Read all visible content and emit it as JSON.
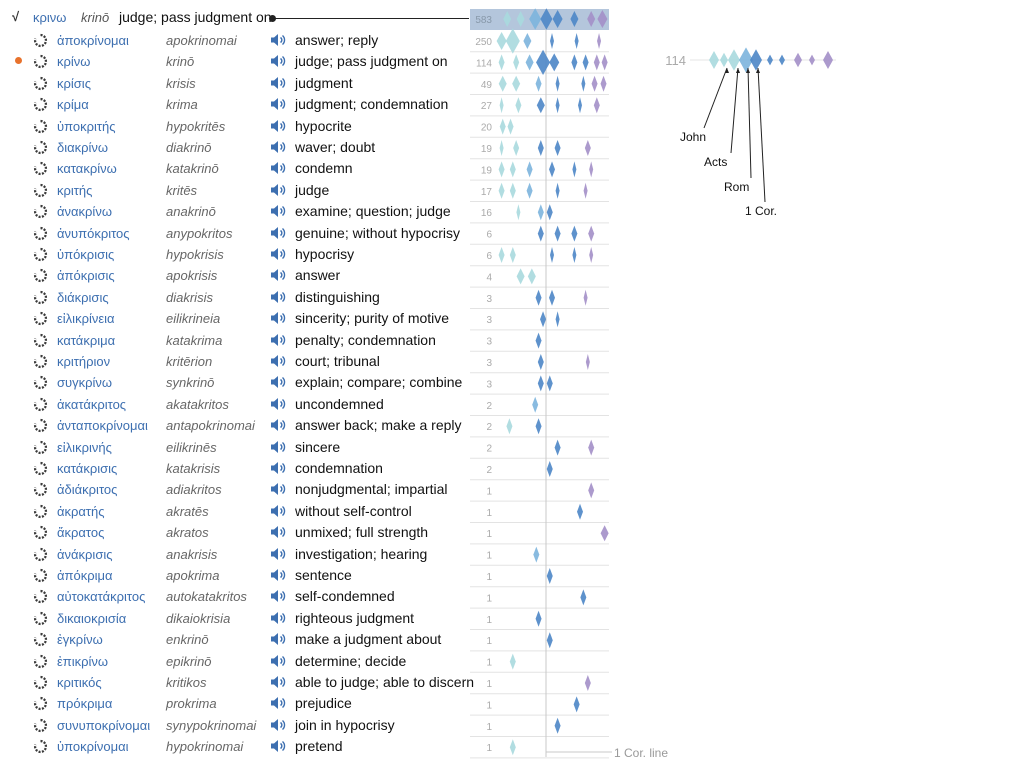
{
  "root": {
    "symbol": "√",
    "greek": "κρινω",
    "translit": "krinō",
    "gloss": "judge; pass judgment on",
    "total": 583
  },
  "colors": {
    "john": "#a9d9de",
    "acts": "#7cb4dd",
    "paul": "#4d86c6",
    "late": "#a38fc8",
    "marker": "#e8722c",
    "link": "#3d6fb0"
  },
  "words": [
    {
      "greek": "ἀποκρίνομαι",
      "translit": "apokrinomai",
      "gloss": "answer; reply",
      "count": 250
    },
    {
      "greek": "κρίνω",
      "translit": "krinō",
      "gloss": "judge; pass judgment on",
      "count": 114,
      "selected": true
    },
    {
      "greek": "κρίσις",
      "translit": "krisis",
      "gloss": "judgment",
      "count": 49
    },
    {
      "greek": "κρίμα",
      "translit": "krima",
      "gloss": "judgment; condemnation",
      "count": 27
    },
    {
      "greek": "ὑποκριτής",
      "translit": "hypokritēs",
      "gloss": "hypocrite",
      "count": 20
    },
    {
      "greek": "διακρίνω",
      "translit": "diakrinō",
      "gloss": "waver; doubt",
      "count": 19
    },
    {
      "greek": "κατακρίνω",
      "translit": "katakrinō",
      "gloss": "condemn",
      "count": 19
    },
    {
      "greek": "κριτής",
      "translit": "kritēs",
      "gloss": "judge",
      "count": 17
    },
    {
      "greek": "ἀνακρίνω",
      "translit": "anakrinō",
      "gloss": "examine; question; judge",
      "count": 16
    },
    {
      "greek": "ἀνυπόκριτος",
      "translit": "anypokritos",
      "gloss": "genuine; without hypocrisy",
      "count": 6
    },
    {
      "greek": "ὑπόκρισις",
      "translit": "hypokrisis",
      "gloss": "hypocrisy",
      "count": 6
    },
    {
      "greek": "ἀπόκρισις",
      "translit": "apokrisis",
      "gloss": "answer",
      "count": 4
    },
    {
      "greek": "διάκρισις",
      "translit": "diakrisis",
      "gloss": "distinguishing",
      "count": 3
    },
    {
      "greek": "εἰλικρίνεια",
      "translit": "eilikrineia",
      "gloss": "sincerity; purity of motive",
      "count": 3
    },
    {
      "greek": "κατάκριμα",
      "translit": "katakrima",
      "gloss": "penalty; condemnation",
      "count": 3
    },
    {
      "greek": "κριτήριον",
      "translit": "kritērion",
      "gloss": "court; tribunal",
      "count": 3
    },
    {
      "greek": "συγκρίνω",
      "translit": "synkrinō",
      "gloss": "explain; compare; combine",
      "count": 3
    },
    {
      "greek": "ἀκατάκριτος",
      "translit": "akatakritos",
      "gloss": "uncondemned",
      "count": 2
    },
    {
      "greek": "ἀνταποκρίνομαι",
      "translit": "antapokrinomai",
      "gloss": "answer back; make a reply",
      "count": 2
    },
    {
      "greek": "εἰλικρινής",
      "translit": "eilikrinēs",
      "gloss": "sincere",
      "count": 2
    },
    {
      "greek": "κατάκρισις",
      "translit": "katakrisis",
      "gloss": "condemnation",
      "count": 2
    },
    {
      "greek": "ἀδιάκριτος",
      "translit": "adiakritos",
      "gloss": "nonjudgmental; impartial",
      "count": 1
    },
    {
      "greek": "ἀκρατής",
      "translit": "akratēs",
      "gloss": "without self-control",
      "count": 1
    },
    {
      "greek": "ἄκρατος",
      "translit": "akratos",
      "gloss": "unmixed; full strength",
      "count": 1
    },
    {
      "greek": "ἀνάκρισις",
      "translit": "anakrisis",
      "gloss": "investigation; hearing",
      "count": 1
    },
    {
      "greek": "ἀπόκριμα",
      "translit": "apokrima",
      "gloss": "sentence",
      "count": 1
    },
    {
      "greek": "αὐτοκατάκριτος",
      "translit": "autokatakritos",
      "gloss": "self-condemned",
      "count": 1
    },
    {
      "greek": "δικαιοκρισία",
      "translit": "dikaiokrisia",
      "gloss": "righteous judgment",
      "count": 1
    },
    {
      "greek": "ἐγκρίνω",
      "translit": "enkrinō",
      "gloss": "make a judgment about",
      "count": 1
    },
    {
      "greek": "ἐπικρίνω",
      "translit": "epikrinō",
      "gloss": "determine; decide",
      "count": 1
    },
    {
      "greek": "κριτικός",
      "translit": "kritikos",
      "gloss": "able to judge; able to discern",
      "count": 1
    },
    {
      "greek": "πρόκριμα",
      "translit": "prokrima",
      "gloss": "prejudice",
      "count": 1
    },
    {
      "greek": "συνυποκρίνομαι",
      "translit": "synypokrinomai",
      "gloss": "join in hypocrisy",
      "count": 1
    },
    {
      "greek": "ὑποκρίνομαι",
      "translit": "hypokrinomai",
      "gloss": "pretend",
      "count": 1
    }
  ],
  "legend": {
    "count": 114,
    "labels": [
      "John",
      "Acts",
      "Rom",
      "1 Cor."
    ],
    "ref_line_label": "1 Cor. line"
  },
  "chart_data": {
    "type": "distribution-strips",
    "axis": "New Testament book order",
    "reference_line": "1 Cor.",
    "rows": [
      {
        "word": "κρινω",
        "count": 583,
        "marks": [
          [
            0.1,
            4,
            "john"
          ],
          [
            0.22,
            4,
            "john"
          ],
          [
            0.35,
            6,
            "acts"
          ],
          [
            0.45,
            6,
            "paul"
          ],
          [
            0.55,
            5,
            "paul"
          ],
          [
            0.7,
            4,
            "paul"
          ],
          [
            0.85,
            4,
            "late"
          ],
          [
            0.95,
            5,
            "late"
          ]
        ]
      },
      {
        "word": "ἀποκρίνομαι",
        "count": 250,
        "marks": [
          [
            0.05,
            5,
            "john"
          ],
          [
            0.15,
            7,
            "john"
          ],
          [
            0.28,
            4,
            "acts"
          ],
          [
            0.5,
            2,
            "paul"
          ],
          [
            0.72,
            2,
            "paul"
          ],
          [
            0.92,
            2,
            "late"
          ]
        ]
      },
      {
        "word": "κρίνω",
        "count": 114,
        "marks": [
          [
            0.05,
            3,
            "john"
          ],
          [
            0.18,
            3,
            "john"
          ],
          [
            0.3,
            4,
            "acts"
          ],
          [
            0.42,
            7,
            "paul"
          ],
          [
            0.52,
            5,
            "paul"
          ],
          [
            0.7,
            3,
            "paul"
          ],
          [
            0.8,
            3,
            "paul"
          ],
          [
            0.9,
            3,
            "late"
          ],
          [
            0.97,
            3,
            "late"
          ]
        ]
      },
      {
        "word": "κρίσις",
        "count": 49,
        "marks": [
          [
            0.06,
            4,
            "john"
          ],
          [
            0.18,
            4,
            "john"
          ],
          [
            0.38,
            3,
            "acts"
          ],
          [
            0.55,
            2,
            "paul"
          ],
          [
            0.78,
            2,
            "paul"
          ],
          [
            0.88,
            3,
            "late"
          ],
          [
            0.96,
            3,
            "late"
          ]
        ]
      },
      {
        "word": "κρίμα",
        "count": 27,
        "marks": [
          [
            0.05,
            2,
            "john"
          ],
          [
            0.2,
            3,
            "john"
          ],
          [
            0.4,
            4,
            "paul"
          ],
          [
            0.55,
            2,
            "paul"
          ],
          [
            0.75,
            2,
            "paul"
          ],
          [
            0.9,
            3,
            "late"
          ]
        ]
      },
      {
        "word": "ὑποκριτής",
        "count": 20,
        "marks": [
          [
            0.06,
            3,
            "john"
          ],
          [
            0.13,
            3,
            "john"
          ]
        ]
      },
      {
        "word": "διακρίνω",
        "count": 19,
        "marks": [
          [
            0.05,
            2,
            "john"
          ],
          [
            0.18,
            3,
            "john"
          ],
          [
            0.4,
            3,
            "paul"
          ],
          [
            0.55,
            3,
            "paul"
          ],
          [
            0.82,
            3,
            "late"
          ]
        ]
      },
      {
        "word": "κατακρίνω",
        "count": 19,
        "marks": [
          [
            0.05,
            3,
            "john"
          ],
          [
            0.15,
            3,
            "john"
          ],
          [
            0.3,
            3,
            "acts"
          ],
          [
            0.5,
            3,
            "paul"
          ],
          [
            0.7,
            2,
            "paul"
          ],
          [
            0.85,
            2,
            "late"
          ]
        ]
      },
      {
        "word": "κριτής",
        "count": 17,
        "marks": [
          [
            0.05,
            3,
            "john"
          ],
          [
            0.15,
            3,
            "john"
          ],
          [
            0.3,
            3,
            "acts"
          ],
          [
            0.55,
            2,
            "paul"
          ],
          [
            0.8,
            2,
            "late"
          ]
        ]
      },
      {
        "word": "ἀνακρίνω",
        "count": 16,
        "marks": [
          [
            0.2,
            2,
            "john"
          ],
          [
            0.4,
            3,
            "acts"
          ],
          [
            0.48,
            3,
            "paul"
          ]
        ]
      },
      {
        "word": "ἀνυπόκριτος",
        "count": 6,
        "marks": [
          [
            0.4,
            3,
            "paul"
          ],
          [
            0.55,
            3,
            "paul"
          ],
          [
            0.7,
            3,
            "paul"
          ],
          [
            0.85,
            3,
            "late"
          ]
        ]
      },
      {
        "word": "ὑπόκρισις",
        "count": 6,
        "marks": [
          [
            0.05,
            3,
            "john"
          ],
          [
            0.15,
            3,
            "john"
          ],
          [
            0.5,
            2,
            "paul"
          ],
          [
            0.7,
            2,
            "paul"
          ],
          [
            0.85,
            2,
            "late"
          ]
        ]
      },
      {
        "word": "ἀπόκρισις",
        "count": 4,
        "marks": [
          [
            0.22,
            4,
            "john"
          ],
          [
            0.32,
            4,
            "john"
          ]
        ]
      },
      {
        "word": "διάκρισις",
        "count": 3,
        "marks": [
          [
            0.38,
            3,
            "paul"
          ],
          [
            0.5,
            3,
            "paul"
          ],
          [
            0.8,
            2,
            "late"
          ]
        ]
      },
      {
        "word": "εἰλικρίνεια",
        "count": 3,
        "marks": [
          [
            0.42,
            3,
            "paul"
          ],
          [
            0.55,
            2,
            "paul"
          ]
        ]
      },
      {
        "word": "κατάκριμα",
        "count": 3,
        "marks": [
          [
            0.38,
            3,
            "paul"
          ]
        ]
      },
      {
        "word": "κριτήριον",
        "count": 3,
        "marks": [
          [
            0.4,
            3,
            "paul"
          ],
          [
            0.82,
            2,
            "late"
          ]
        ]
      },
      {
        "word": "συγκρίνω",
        "count": 3,
        "marks": [
          [
            0.4,
            3,
            "paul"
          ],
          [
            0.48,
            3,
            "paul"
          ]
        ]
      },
      {
        "word": "ἀκατάκριτος",
        "count": 2,
        "marks": [
          [
            0.35,
            3,
            "acts"
          ]
        ]
      },
      {
        "word": "ἀνταποκρίνομαι",
        "count": 2,
        "marks": [
          [
            0.12,
            3,
            "john"
          ],
          [
            0.38,
            3,
            "paul"
          ]
        ]
      },
      {
        "word": "εἰλικρινής",
        "count": 2,
        "marks": [
          [
            0.55,
            3,
            "paul"
          ],
          [
            0.85,
            3,
            "late"
          ]
        ]
      },
      {
        "word": "κατάκρισις",
        "count": 2,
        "marks": [
          [
            0.48,
            3,
            "paul"
          ]
        ]
      },
      {
        "word": "ἀδιάκριτος",
        "count": 1,
        "marks": [
          [
            0.85,
            3,
            "late"
          ]
        ]
      },
      {
        "word": "ἀκρατής",
        "count": 1,
        "marks": [
          [
            0.75,
            3,
            "paul"
          ]
        ]
      },
      {
        "word": "ἄκρατος",
        "count": 1,
        "marks": [
          [
            0.97,
            4,
            "late"
          ]
        ]
      },
      {
        "word": "ἀνάκρισις",
        "count": 1,
        "marks": [
          [
            0.36,
            3,
            "acts"
          ]
        ]
      },
      {
        "word": "ἀπόκριμα",
        "count": 1,
        "marks": [
          [
            0.48,
            3,
            "paul"
          ]
        ]
      },
      {
        "word": "αὐτοκατάκριτος",
        "count": 1,
        "marks": [
          [
            0.78,
            3,
            "paul"
          ]
        ]
      },
      {
        "word": "δικαιοκρισία",
        "count": 1,
        "marks": [
          [
            0.38,
            3,
            "paul"
          ]
        ]
      },
      {
        "word": "ἐγκρίνω",
        "count": 1,
        "marks": [
          [
            0.48,
            3,
            "paul"
          ]
        ]
      },
      {
        "word": "ἐπικρίνω",
        "count": 1,
        "marks": [
          [
            0.15,
            3,
            "john"
          ]
        ]
      },
      {
        "word": "κριτικός",
        "count": 1,
        "marks": [
          [
            0.82,
            3,
            "late"
          ]
        ]
      },
      {
        "word": "πρόκριμα",
        "count": 1,
        "marks": [
          [
            0.72,
            3,
            "paul"
          ]
        ]
      },
      {
        "word": "συνυποκρίνομαι",
        "count": 1,
        "marks": [
          [
            0.55,
            3,
            "paul"
          ]
        ]
      },
      {
        "word": "ὑποκρίνομαι",
        "count": 1,
        "marks": [
          [
            0.15,
            3,
            "john"
          ]
        ]
      }
    ]
  }
}
